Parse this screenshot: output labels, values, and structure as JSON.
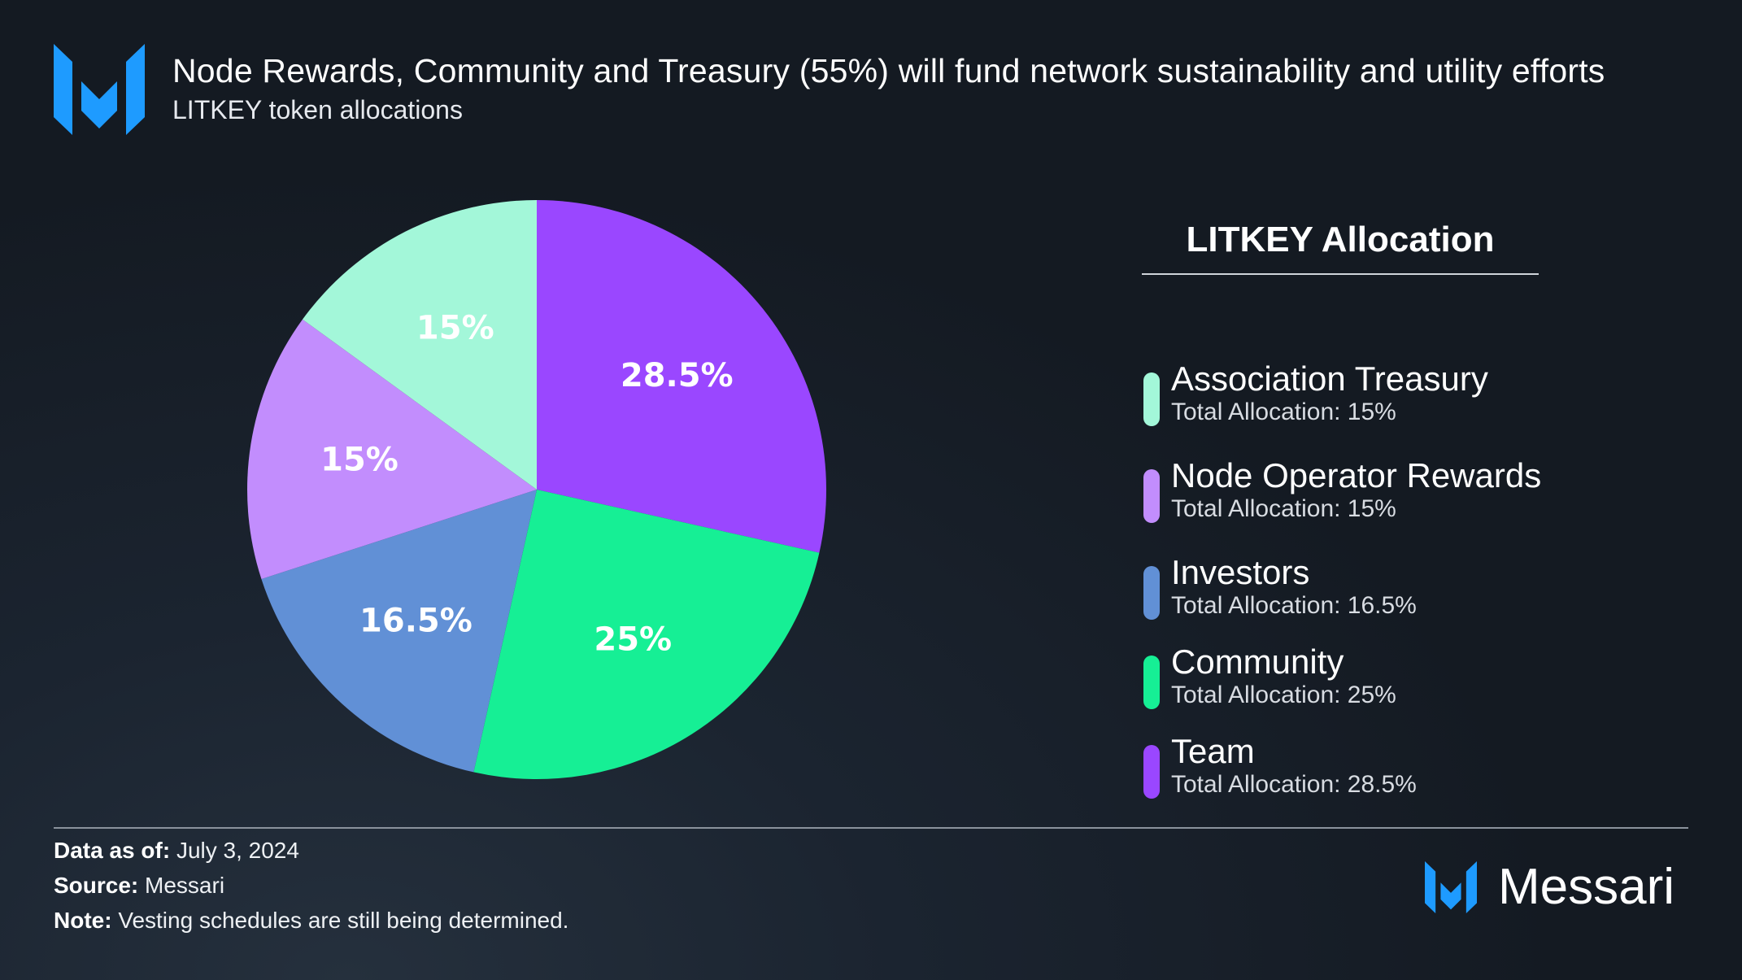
{
  "header": {
    "title": "Node Rewards, Community and Treasury (55%) will fund network sustainability and utility efforts",
    "subtitle": "LITKEY token allocations"
  },
  "chart_data": {
    "type": "pie",
    "title": "Node Rewards, Community and Treasury (55%) will fund network sustainability and utility efforts",
    "subtitle": "LITKEY token allocations",
    "legend_title": "LITKEY Allocation",
    "legend_position": "right",
    "slices": [
      {
        "label": "Team",
        "value": 28.5,
        "display": "28.5%",
        "color": "#9a47ff"
      },
      {
        "label": "Community",
        "value": 25,
        "display": "25%",
        "color": "#16ef95"
      },
      {
        "label": "Investors",
        "value": 16.5,
        "display": "16.5%",
        "color": "#6190d6"
      },
      {
        "label": "Node Operator Rewards",
        "value": 15,
        "display": "15%",
        "color": "#c28dfd"
      },
      {
        "label": "Association Treasury",
        "value": 15,
        "display": "15%",
        "color": "#a3f7d9"
      }
    ]
  },
  "legend": {
    "title": "LITKEY Allocation",
    "items": [
      {
        "name": "Association Treasury",
        "value": "Total Allocation: 15%",
        "color": "#a3f7d9"
      },
      {
        "name": "Node Operator Rewards",
        "value": "Total Allocation: 15%",
        "color": "#c28dfd"
      },
      {
        "name": "Investors",
        "value": "Total Allocation: 16.5%",
        "color": "#6190d6"
      },
      {
        "name": "Community",
        "value": "Total Allocation: 25%",
        "color": "#16ef95"
      },
      {
        "name": "Team",
        "value": "Total Allocation: 28.5%",
        "color": "#9a47ff"
      }
    ]
  },
  "footer": {
    "data_as_of_label": "Data as of:",
    "data_as_of_value": "July 3, 2024",
    "source_label": "Source:",
    "source_value": "Messari",
    "note_label": "Note:",
    "note_value": "Vesting schedules are still being determined."
  },
  "brand": {
    "name": "Messari",
    "accent_color": "#1e9bff"
  }
}
